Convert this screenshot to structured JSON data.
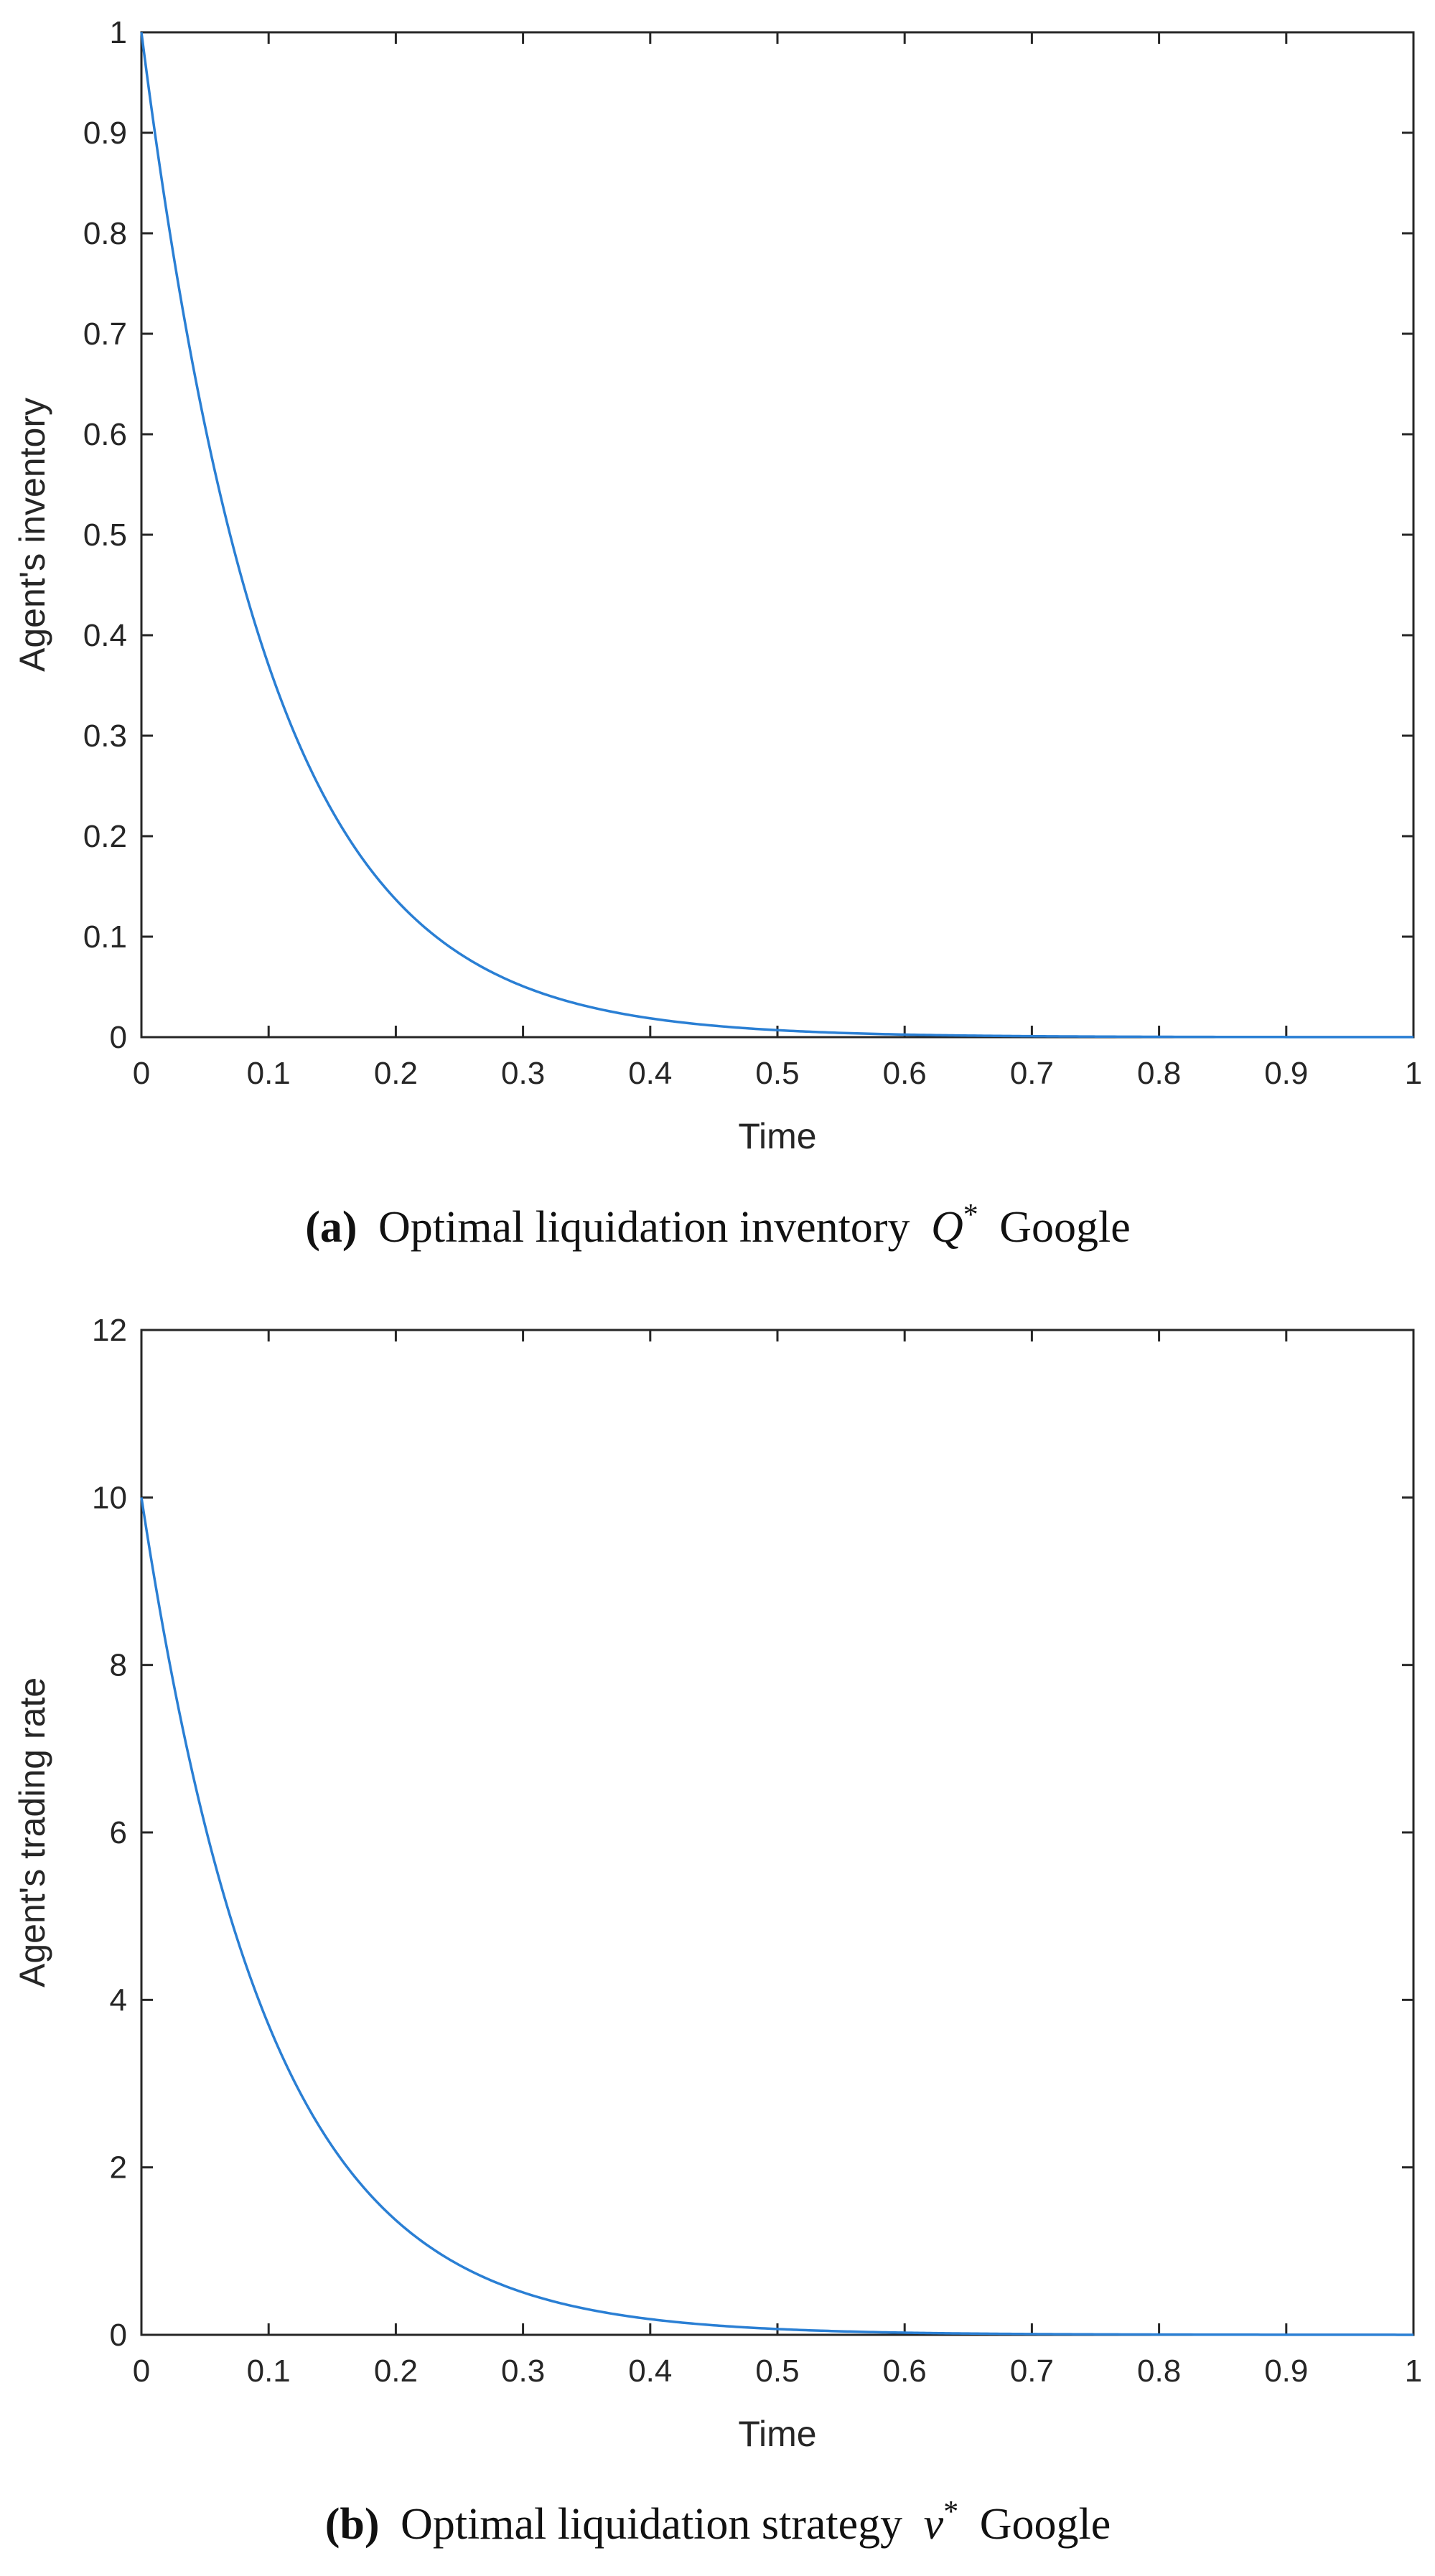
{
  "colors": {
    "line": "#2a7fd4",
    "axes": "#262626"
  },
  "chart_data": [
    {
      "type": "line",
      "panel": "a",
      "title": "",
      "xlabel": "Time",
      "ylabel": "Agent's inventory",
      "xlim": [
        0,
        1
      ],
      "ylim": [
        0,
        1
      ],
      "xticks": [
        0,
        0.1,
        0.2,
        0.3,
        0.4,
        0.5,
        0.6,
        0.7,
        0.8,
        0.9,
        1
      ],
      "xtick_labels": [
        "0",
        "0.1",
        "0.2",
        "0.3",
        "0.4",
        "0.5",
        "0.6",
        "0.7",
        "0.8",
        "0.9",
        "1"
      ],
      "yticks": [
        0,
        0.1,
        0.2,
        0.3,
        0.4,
        0.5,
        0.6,
        0.7,
        0.8,
        0.9,
        1
      ],
      "ytick_labels": [
        "0",
        "0.1",
        "0.2",
        "0.3",
        "0.4",
        "0.5",
        "0.6",
        "0.7",
        "0.8",
        "0.9",
        "1"
      ],
      "series": [
        {
          "name": "Q*",
          "x": [
            0,
            0.05,
            0.1,
            0.15,
            0.2,
            0.25,
            0.3,
            0.35,
            0.4,
            0.45,
            0.5,
            0.55,
            0.6,
            0.65,
            0.7,
            0.75,
            0.8,
            0.85,
            0.9,
            0.95,
            1
          ],
          "values": [
            1,
            0.61,
            0.37,
            0.22,
            0.135,
            0.082,
            0.05,
            0.03,
            0.018,
            0.011,
            0.007,
            0.004,
            0.0025,
            0.0015,
            0.0009,
            0.0006,
            0.0003,
            0.0002,
            0.0001,
            0.0001,
            0
          ]
        }
      ],
      "caption": {
        "label": "(a)",
        "text": "Optimal liquidation inventory",
        "symbol": "Q",
        "sup": "*",
        "suffix": "Google"
      }
    },
    {
      "type": "line",
      "panel": "b",
      "title": "",
      "xlabel": "Time",
      "ylabel": "Agent's trading rate",
      "xlim": [
        0,
        1
      ],
      "ylim": [
        0,
        12
      ],
      "xticks": [
        0,
        0.1,
        0.2,
        0.3,
        0.4,
        0.5,
        0.6,
        0.7,
        0.8,
        0.9,
        1
      ],
      "xtick_labels": [
        "0",
        "0.1",
        "0.2",
        "0.3",
        "0.4",
        "0.5",
        "0.6",
        "0.7",
        "0.8",
        "0.9",
        "1"
      ],
      "yticks": [
        0,
        2,
        4,
        6,
        8,
        10,
        12
      ],
      "ytick_labels": [
        "0",
        "2",
        "4",
        "6",
        "8",
        "10",
        "12"
      ],
      "series": [
        {
          "name": "ν*",
          "x": [
            0,
            0.05,
            0.1,
            0.15,
            0.2,
            0.25,
            0.3,
            0.35,
            0.4,
            0.45,
            0.5,
            0.55,
            0.6,
            0.65,
            0.7,
            0.75,
            0.8,
            0.85,
            0.9,
            0.95,
            1
          ],
          "values": [
            10,
            6.1,
            3.7,
            2.2,
            1.35,
            0.82,
            0.5,
            0.3,
            0.18,
            0.11,
            0.07,
            0.04,
            0.025,
            0.015,
            0.009,
            0.006,
            0.003,
            0.002,
            0.001,
            0.001,
            0
          ]
        }
      ],
      "caption": {
        "label": "(b)",
        "text": "Optimal liquidation strategy",
        "symbol": "ν",
        "sup": "*",
        "suffix": "Google"
      }
    }
  ]
}
